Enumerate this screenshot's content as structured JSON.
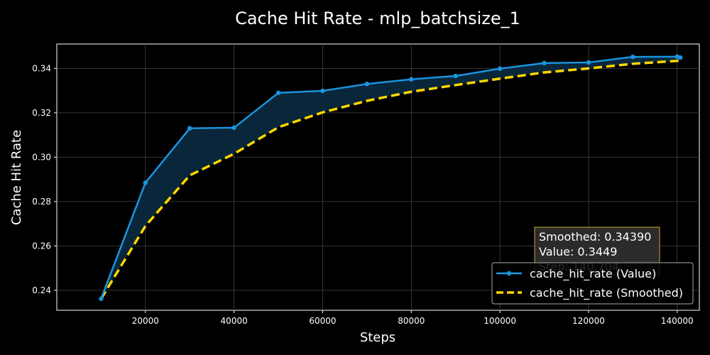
{
  "chart_data": {
    "type": "line",
    "title": "Cache Hit Rate - mlp_batchsize_1",
    "xlabel": "Steps",
    "ylabel": "Cache Hit Rate",
    "xlim": [
      0,
      145000
    ],
    "ylim": [
      0.231,
      0.351
    ],
    "x_ticks": [
      20000,
      40000,
      60000,
      80000,
      100000,
      120000,
      140000
    ],
    "y_ticks": [
      0.24,
      0.26,
      0.28,
      0.3,
      0.32,
      0.34
    ],
    "grid": true,
    "legend_position": "bottom-right",
    "series": [
      {
        "name": "cache_hit_rate (Value)",
        "color": "#1a95e0",
        "style": "solid-with-markers",
        "x": [
          10000,
          20000,
          30000,
          40000,
          50000,
          60000,
          70000,
          80000,
          90000,
          100000,
          110000,
          120000,
          130000,
          140000,
          140704
        ],
        "y": [
          0.2362,
          0.2885,
          0.313,
          0.3133,
          0.329,
          0.3299,
          0.333,
          0.3351,
          0.3366,
          0.3399,
          0.3424,
          0.3427,
          0.3452,
          0.3453,
          0.3449
        ]
      },
      {
        "name": "cache_hit_rate (Smoothed)",
        "color": "#ffd700",
        "style": "dashed",
        "x": [
          10000,
          20000,
          30000,
          40000,
          50000,
          60000,
          70000,
          80000,
          90000,
          100000,
          110000,
          120000,
          130000,
          140000,
          140704
        ],
        "y": [
          0.2362,
          0.269,
          0.2918,
          0.3015,
          0.3135,
          0.3202,
          0.3254,
          0.3295,
          0.3325,
          0.3354,
          0.3382,
          0.34,
          0.3421,
          0.3434,
          0.3439
        ]
      }
    ],
    "fill_between": {
      "series": [
        "cache_hit_rate (Value)",
        "cache_hit_rate (Smoothed)"
      ],
      "color": "#0a2a40"
    },
    "tooltip": {
      "lines": [
        "Smoothed: 0.34390",
        "Value: 0.3449",
        "Step: 140,704"
      ],
      "border_color": "#c8a82a",
      "background": "#2b2b2b"
    }
  }
}
